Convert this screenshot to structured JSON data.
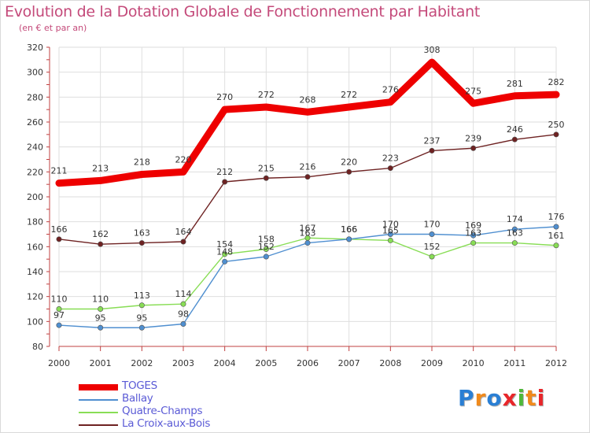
{
  "header": {
    "title": "Evolution de la Dotation Globale de Fonctionnement par Habitant",
    "subtitle": "(en € et par an)"
  },
  "chart_data": {
    "type": "line",
    "title": "Evolution de la Dotation Globale de Fonctionnement par Habitant",
    "subtitle": "(en € et par an)",
    "xlabel": "",
    "ylabel": "",
    "categories": [
      "2000",
      "2001",
      "2002",
      "2003",
      "2004",
      "2005",
      "2006",
      "2007",
      "2008",
      "2009",
      "2010",
      "2011",
      "2012"
    ],
    "ylim": [
      80,
      320
    ],
    "yticks": [
      80,
      100,
      120,
      140,
      160,
      180,
      200,
      220,
      240,
      260,
      280,
      300,
      320
    ],
    "grid": true,
    "legend_position": "bottom-left",
    "series": [
      {
        "name": "TOGES",
        "color": "#ee0000",
        "values": [
          211,
          213,
          218,
          220,
          270,
          272,
          268,
          272,
          276,
          308,
          275,
          281,
          282
        ]
      },
      {
        "name": "Ballay",
        "color": "#4f8fd0",
        "values": [
          97,
          95,
          95,
          98,
          148,
          152,
          163,
          166,
          170,
          170,
          169,
          174,
          176
        ]
      },
      {
        "name": "Quatre-Champs",
        "color": "#88dd55",
        "values": [
          110,
          110,
          113,
          114,
          154,
          158,
          167,
          166,
          165,
          152,
          163,
          163,
          161
        ]
      },
      {
        "name": "La Croix-aux-Bois",
        "color": "#6e2222",
        "values": [
          166,
          162,
          163,
          164,
          212,
          215,
          216,
          220,
          223,
          237,
          239,
          246,
          250
        ]
      }
    ]
  },
  "branding": {
    "logo_text": "Proxiti",
    "logo_letters": [
      "P",
      "r",
      "o",
      "x",
      "i",
      "t",
      "i"
    ],
    "logo_colors": [
      "#2a7fd4",
      "#f08a1c",
      "#2a7fd4",
      "#e8262a",
      "#4fb83a",
      "#f08a1c",
      "#e8262a"
    ]
  }
}
